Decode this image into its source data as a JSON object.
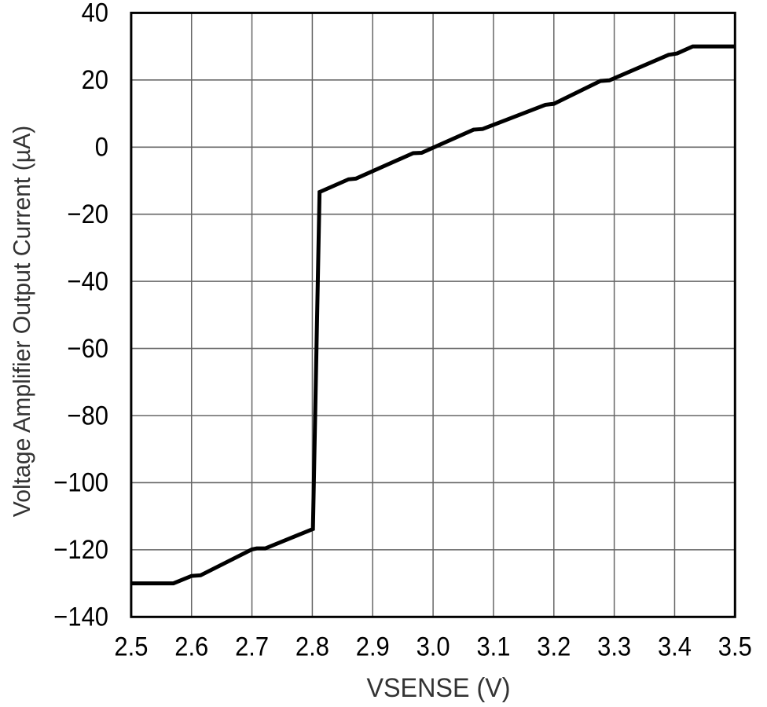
{
  "figure": {
    "background": "#ffffff"
  },
  "chart_data": {
    "type": "line",
    "title": "",
    "xlabel": "VSENSE (V)",
    "ylabel": "Voltage Amplifier Output Current (µA)",
    "xlim": [
      2.5,
      3.5
    ],
    "ylim": [
      -140,
      40
    ],
    "x_ticks": {
      "values": [
        2.5,
        2.6,
        2.7,
        2.8,
        2.9,
        3.0,
        3.1,
        3.2,
        3.3,
        3.4,
        3.5
      ],
      "labels": [
        "2.5",
        "2.6",
        "2.7",
        "2.8",
        "2.9",
        "3.0",
        "3.1",
        "3.2",
        "3.3",
        "3.4",
        "3.5"
      ]
    },
    "y_ticks": {
      "values": [
        40,
        20,
        0,
        -20,
        -40,
        -60,
        -80,
        -100,
        -120,
        -140
      ],
      "labels": [
        "40",
        "20",
        "0",
        "−20",
        "−40",
        "−60",
        "−80",
        "−100",
        "−120",
        "−140"
      ]
    },
    "grid": true,
    "legend": false,
    "series": [
      {
        "name": "voltage-amplifier-output-current",
        "color": "#000000",
        "points": [
          [
            2.5,
            -130.0
          ],
          [
            2.57,
            -130.0
          ],
          [
            2.6,
            -127.8
          ],
          [
            2.615,
            -127.6
          ],
          [
            2.7,
            -119.9
          ],
          [
            2.708,
            -119.6
          ],
          [
            2.722,
            -119.6
          ],
          [
            2.801,
            -113.8
          ],
          [
            2.812,
            -13.4
          ],
          [
            2.86,
            -9.6
          ],
          [
            2.872,
            -9.4
          ],
          [
            2.967,
            -1.8
          ],
          [
            2.981,
            -1.7
          ],
          [
            3.067,
            5.2
          ],
          [
            3.082,
            5.4
          ],
          [
            3.186,
            12.6
          ],
          [
            3.2,
            12.9
          ],
          [
            3.277,
            19.7
          ],
          [
            3.292,
            19.9
          ],
          [
            3.39,
            27.5
          ],
          [
            3.404,
            27.9
          ],
          [
            3.43,
            30.0
          ],
          [
            3.5,
            30.0
          ]
        ]
      }
    ],
    "styles": {
      "curve_color": "#000000",
      "grid_color": "#666666",
      "frame_color": "#000000",
      "tick_label_color": "#000000",
      "axis_title_color": "#333333"
    }
  }
}
